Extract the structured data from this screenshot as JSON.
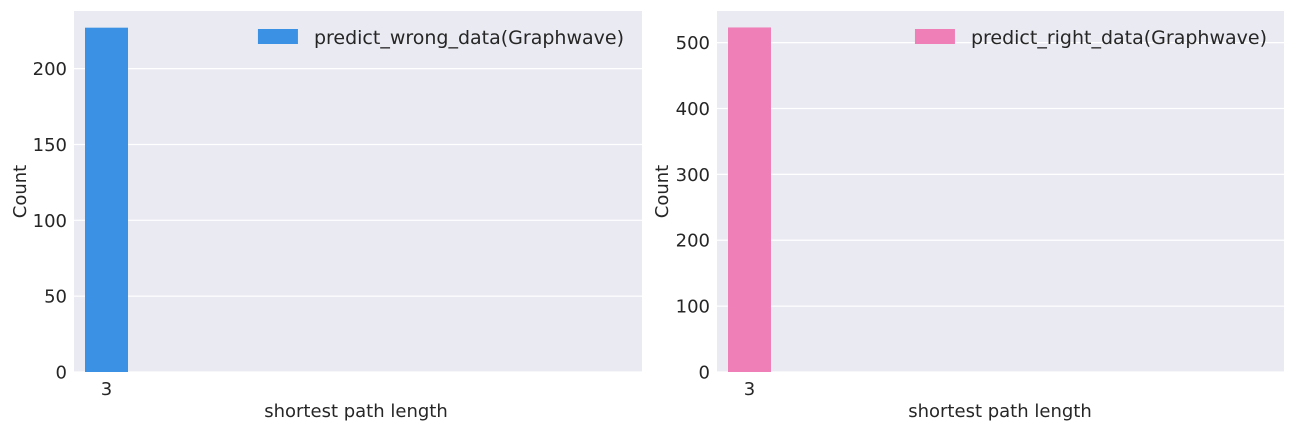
{
  "chart_data": [
    {
      "type": "bar",
      "categories": [
        "3"
      ],
      "values": [
        227
      ],
      "series_name": "predict_wrong_data(Graphwave)",
      "color": "#3b91e3",
      "xlabel": "shortest path length",
      "ylabel": "Count",
      "ylim": [
        0,
        238
      ],
      "yticks": [
        0,
        50,
        100,
        150,
        200
      ],
      "grid": true,
      "legend_position": "top-right",
      "background": "#eaeaf2"
    },
    {
      "type": "bar",
      "categories": [
        "3"
      ],
      "values": [
        523
      ],
      "series_name": "predict_right_data(Graphwave)",
      "color": "#ee7fb7",
      "xlabel": "shortest path length",
      "ylabel": "Count",
      "ylim": [
        0,
        548
      ],
      "yticks": [
        0,
        100,
        200,
        300,
        400,
        500
      ],
      "grid": true,
      "legend_position": "top-right",
      "background": "#eaeaf2"
    }
  ]
}
